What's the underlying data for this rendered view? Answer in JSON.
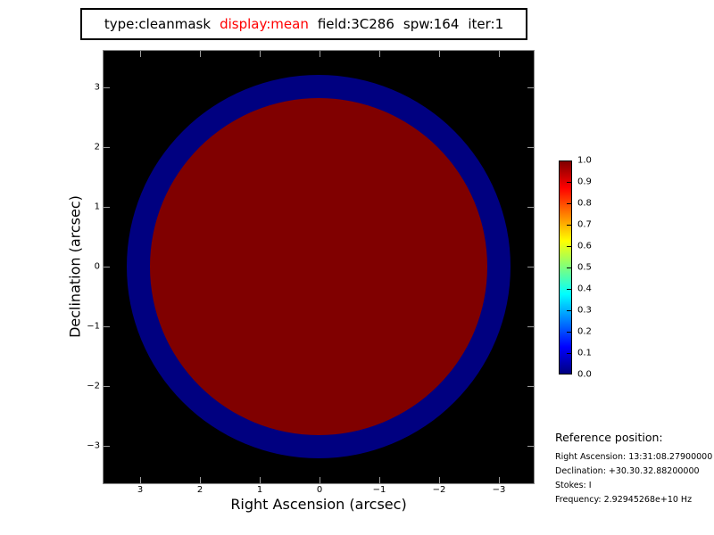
{
  "title": {
    "segments": [
      {
        "text": "type:cleanmask",
        "color": "#000000"
      },
      {
        "text": "display:mean",
        "color": "#ff0000"
      },
      {
        "text": "field:3C286",
        "color": "#000000"
      },
      {
        "text": "spw:164",
        "color": "#000000"
      },
      {
        "text": "iter:1",
        "color": "#000000"
      }
    ]
  },
  "plot": {
    "xlabel": "Right Ascension (arcsec)",
    "ylabel": "Declination (arcsec)",
    "x_tick_labels": [
      "3",
      "2",
      "1",
      "0",
      "−1",
      "−2",
      "−3"
    ],
    "y_tick_labels": [
      "3",
      "2",
      "1",
      "0",
      "−1",
      "−2",
      "−3"
    ],
    "background_color": "#000000",
    "ring_color": "#000080",
    "disk_color": "#800000"
  },
  "colorbar": {
    "tick_labels": [
      "1.0",
      "0.9",
      "0.8",
      "0.7",
      "0.6",
      "0.5",
      "0.4",
      "0.3",
      "0.2",
      "0.1",
      "0.0"
    ],
    "colormap": "jet",
    "gradient_stops": [
      "#000080 0%",
      "#0000ff 12.5%",
      "#00ffff 37.5%",
      "#7dff7d 50%",
      "#ffff00 62.5%",
      "#ff0000 87.5%",
      "#800000 100%"
    ]
  },
  "reference": {
    "heading": "Reference position:",
    "lines": [
      "Right Ascension: 13:31:08.27900000",
      "Declination: +30.30.32.88200000",
      "Stokes: I",
      "Frequency: 2.92945268e+10 Hz"
    ]
  },
  "chart_data": {
    "type": "heatmap",
    "title": "type:cleanmask  display:mean  field:3C286  spw:164  iter:1",
    "xlabel": "Right Ascension (arcsec)",
    "ylabel": "Declination (arcsec)",
    "x_ticks": [
      3,
      2,
      1,
      0,
      -1,
      -2,
      -3
    ],
    "y_ticks": [
      3,
      2,
      1,
      0,
      -1,
      -2,
      -3
    ],
    "xlim": [
      3.6,
      -3.6
    ],
    "ylim": [
      -3.6,
      3.6
    ],
    "x_axis_reversed": true,
    "colormap": "jet",
    "colorbar_range": [
      0.0,
      1.0
    ],
    "colorbar_tick_step": 0.1,
    "regions": [
      {
        "name": "background",
        "value": null,
        "color": "#000000",
        "note": "blank / no data"
      },
      {
        "name": "zero-ring",
        "value": 0.0,
        "inner_radius_arcsec": 2.8,
        "outer_radius_arcsec": 3.2,
        "color": "#000080"
      },
      {
        "name": "mask-disk",
        "value": 1.0,
        "radius_arcsec": 2.8,
        "color": "#800000",
        "center_arcsec": [
          0,
          0
        ]
      }
    ]
  }
}
